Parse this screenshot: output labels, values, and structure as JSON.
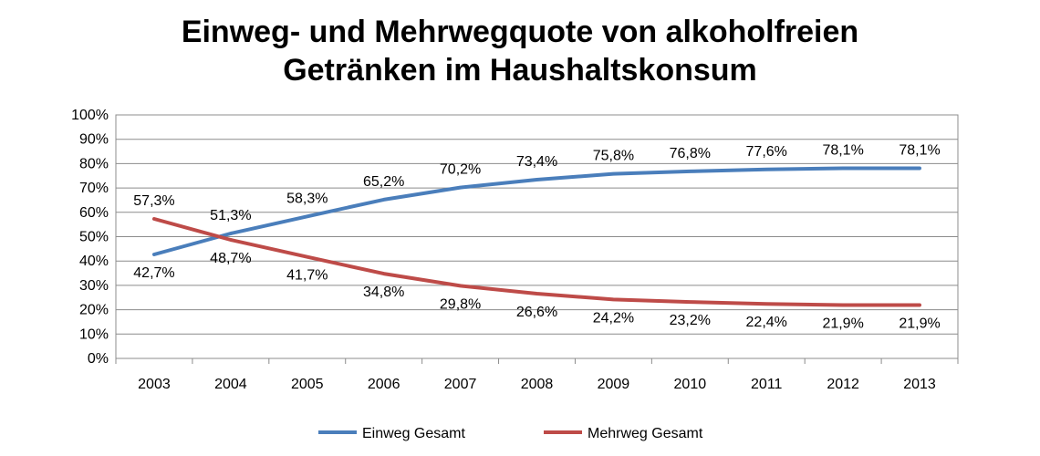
{
  "chart_data": {
    "type": "line",
    "title": [
      "Einweg- und Mehrwegquote von alkoholfreien",
      "Getränken im Haushaltskonsum"
    ],
    "categories": [
      "2003",
      "2004",
      "2005",
      "2006",
      "2007",
      "2008",
      "2009",
      "2010",
      "2011",
      "2012",
      "2013"
    ],
    "ylim": [
      0,
      100
    ],
    "yticks": [
      "0%",
      "10%",
      "20%",
      "30%",
      "40%",
      "50%",
      "60%",
      "70%",
      "80%",
      "90%",
      "100%"
    ],
    "grid": true,
    "legend_position": "bottom",
    "series": [
      {
        "name": "Einweg Gesamt",
        "color": "#4a7ebb",
        "values": [
          42.7,
          51.3,
          58.3,
          65.2,
          70.2,
          73.4,
          75.8,
          76.8,
          77.6,
          78.1,
          78.1
        ],
        "labels": [
          "42,7%",
          "51,3%",
          "58,3%",
          "65,2%",
          "70,2%",
          "73,4%",
          "75,8%",
          "76,8%",
          "77,6%",
          "78,1%",
          "78,1%"
        ]
      },
      {
        "name": "Mehrweg Gesamt",
        "color": "#be4b48",
        "values": [
          57.3,
          48.7,
          41.7,
          34.8,
          29.8,
          26.6,
          24.2,
          23.2,
          22.4,
          21.9,
          21.9
        ],
        "labels": [
          "57,3%",
          "48,7%",
          "41,7%",
          "34,8%",
          "29,8%",
          "26,6%",
          "24,2%",
          "23,2%",
          "22,4%",
          "21,9%",
          "21,9%"
        ]
      }
    ]
  }
}
